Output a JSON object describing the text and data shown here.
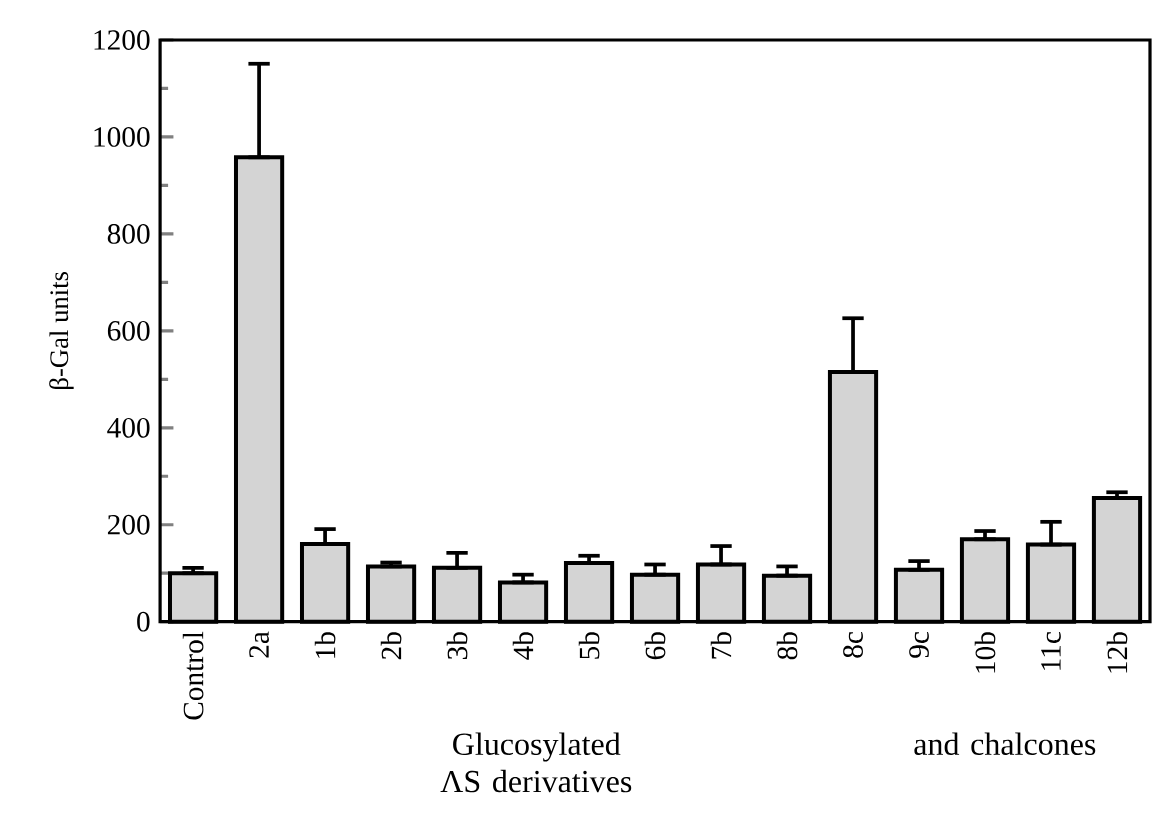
{
  "chart_data": {
    "type": "bar",
    "ylabel": "β-Gal units",
    "categories": [
      "Control",
      "2a",
      "1b",
      "2b",
      "3b",
      "4b",
      "5b",
      "6b",
      "7b",
      "8b",
      "8c",
      "9c",
      "10b",
      "11c",
      "12b"
    ],
    "values": [
      100,
      958,
      160,
      114,
      111,
      81,
      121,
      97,
      118,
      95,
      515,
      107,
      170,
      159,
      255
    ],
    "errors": [
      [
        100,
        111
      ],
      [
        958,
        1151
      ],
      [
        160,
        191
      ],
      [
        114,
        122
      ],
      [
        111,
        142
      ],
      [
        81,
        97
      ],
      [
        121,
        136
      ],
      [
        97,
        118
      ],
      [
        118,
        156
      ],
      [
        95,
        114
      ],
      [
        515,
        626
      ],
      [
        107,
        125
      ],
      [
        170,
        187
      ],
      [
        159,
        206
      ],
      [
        255,
        267
      ]
    ],
    "color": "#d4d4d4",
    "ylim": [
      0,
      1200
    ],
    "yticks": [
      0,
      200,
      400,
      600,
      800,
      1000,
      1200
    ],
    "grid": false,
    "annotations": [
      "Glucosylated ΛS derivatives",
      "and chalcones"
    ]
  }
}
